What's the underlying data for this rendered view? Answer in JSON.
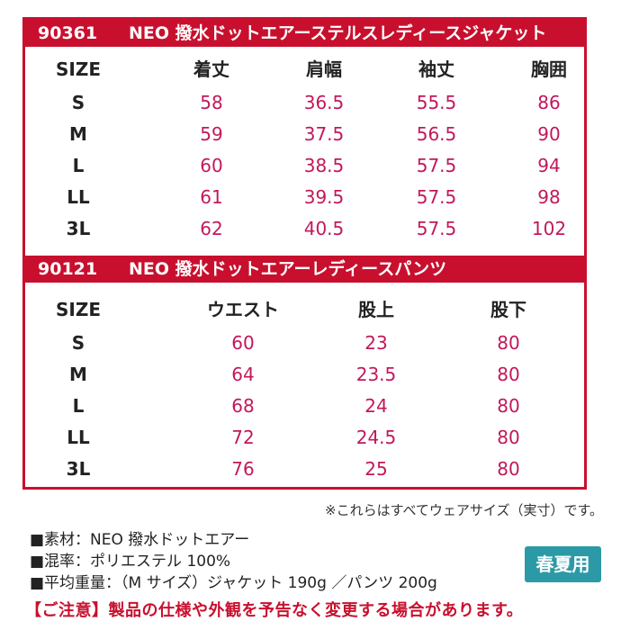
{
  "jacket": {
    "code": "90361",
    "name": "NEO 撥水ドットエアーステルスレディースジャケット",
    "headers": [
      "SIZE",
      "着丈",
      "肩幅",
      "袖丈",
      "胸囲"
    ],
    "rows": [
      [
        "S",
        "58",
        "36.5",
        "55.5",
        "86"
      ],
      [
        "M",
        "59",
        "37.5",
        "56.5",
        "90"
      ],
      [
        "L",
        "60",
        "38.5",
        "57.5",
        "94"
      ],
      [
        "LL",
        "61",
        "39.5",
        "57.5",
        "98"
      ],
      [
        "3L",
        "62",
        "40.5",
        "57.5",
        "102"
      ]
    ]
  },
  "pants": {
    "code": "90121",
    "name": "NEO 撥水ドットエアーレディースパンツ",
    "headers": [
      "SIZE",
      "ウエスト",
      "股上",
      "股下"
    ],
    "rows": [
      [
        "S",
        "60",
        "23",
        "80"
      ],
      [
        "M",
        "64",
        "23.5",
        "80"
      ],
      [
        "L",
        "68",
        "24",
        "80"
      ],
      [
        "LL",
        "72",
        "24.5",
        "80"
      ],
      [
        "3L",
        "76",
        "25",
        "80"
      ]
    ]
  },
  "note": "※これらはすべてウェアサイズ（実寸）です。",
  "specs": [
    "■素材：NEO 撥水ドットエアー",
    "■混率：ポリエステル 100%",
    "■平均重量：（M サイズ）ジャケット 190g ／パンツ 200g"
  ],
  "badge": "春夏用",
  "warning": "【ご注意】製品の仕様や外観を予告なく変更する場合があります。",
  "colors": {
    "accent_red": "#c8102e",
    "value_pink": "#c2185b",
    "badge_teal": "#2b9aa6"
  }
}
